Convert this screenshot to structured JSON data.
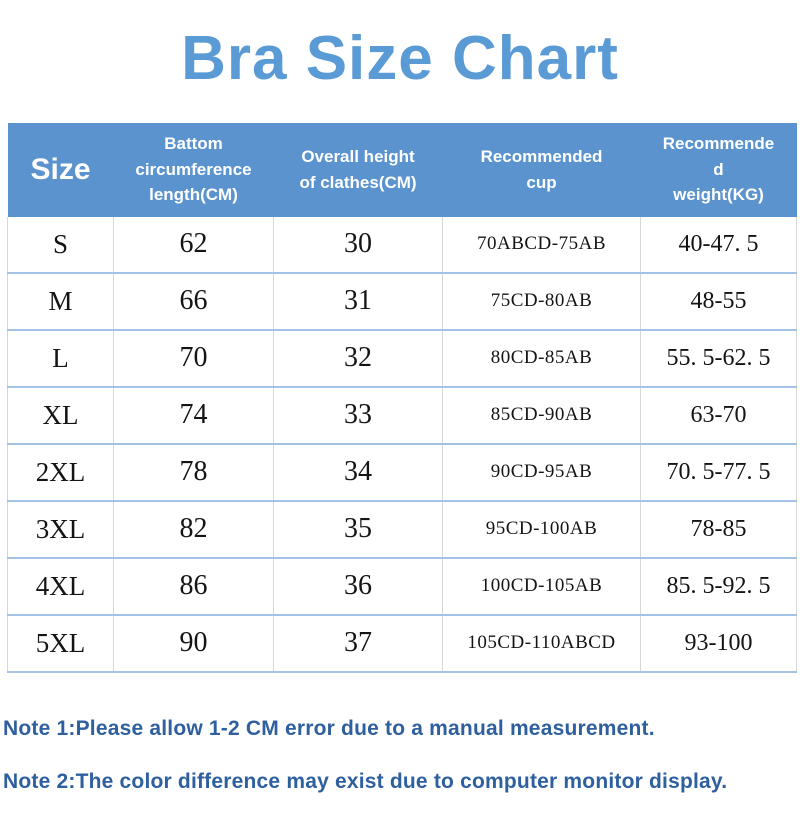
{
  "page": {
    "title": "Bra Size Chart"
  },
  "colors": {
    "title": "#5b9bd5",
    "header_bg": "#5b93ce",
    "header_text": "#ffffff",
    "note_text": "#2e5f9e",
    "row_divider": "#a4c2e6",
    "column_divider": "#d7d7d7"
  },
  "table": {
    "columns": [
      {
        "id": "size",
        "label_lines": [
          "Size"
        ]
      },
      {
        "id": "circumference",
        "label_lines": [
          "Battom",
          "circumference",
          "length(CM)"
        ]
      },
      {
        "id": "height",
        "label_lines": [
          "Overall height",
          "of clathes(CM)"
        ]
      },
      {
        "id": "cup",
        "label_lines": [
          "Recommended",
          "cup"
        ]
      },
      {
        "id": "weight",
        "label_lines": [
          "Recommende",
          "d",
          "weight(KG)"
        ]
      }
    ],
    "rows": [
      {
        "size": "S",
        "circumference": "62",
        "height": "30",
        "cup": "70ABCD-75AB",
        "weight": "40-47. 5"
      },
      {
        "size": "M",
        "circumference": "66",
        "height": "31",
        "cup": "75CD-80AB",
        "weight": "48-55"
      },
      {
        "size": "L",
        "circumference": "70",
        "height": "32",
        "cup": "80CD-85AB",
        "weight": "55. 5-62. 5"
      },
      {
        "size": "XL",
        "circumference": "74",
        "height": "33",
        "cup": "85CD-90AB",
        "weight": "63-70"
      },
      {
        "size": "2XL",
        "circumference": "78",
        "height": "34",
        "cup": "90CD-95AB",
        "weight": "70. 5-77. 5"
      },
      {
        "size": "3XL",
        "circumference": "82",
        "height": "35",
        "cup": "95CD-100AB",
        "weight": "78-85"
      },
      {
        "size": "4XL",
        "circumference": "86",
        "height": "36",
        "cup": "100CD-105AB",
        "weight": "85. 5-92. 5"
      },
      {
        "size": "5XL",
        "circumference": "90",
        "height": "37",
        "cup": "105CD-110ABCD",
        "weight": "93-100"
      }
    ]
  },
  "notes": [
    "Note 1:Please allow 1-2 CM error due to a manual measurement.",
    "Note 2:The color difference may exist due to computer monitor display."
  ]
}
